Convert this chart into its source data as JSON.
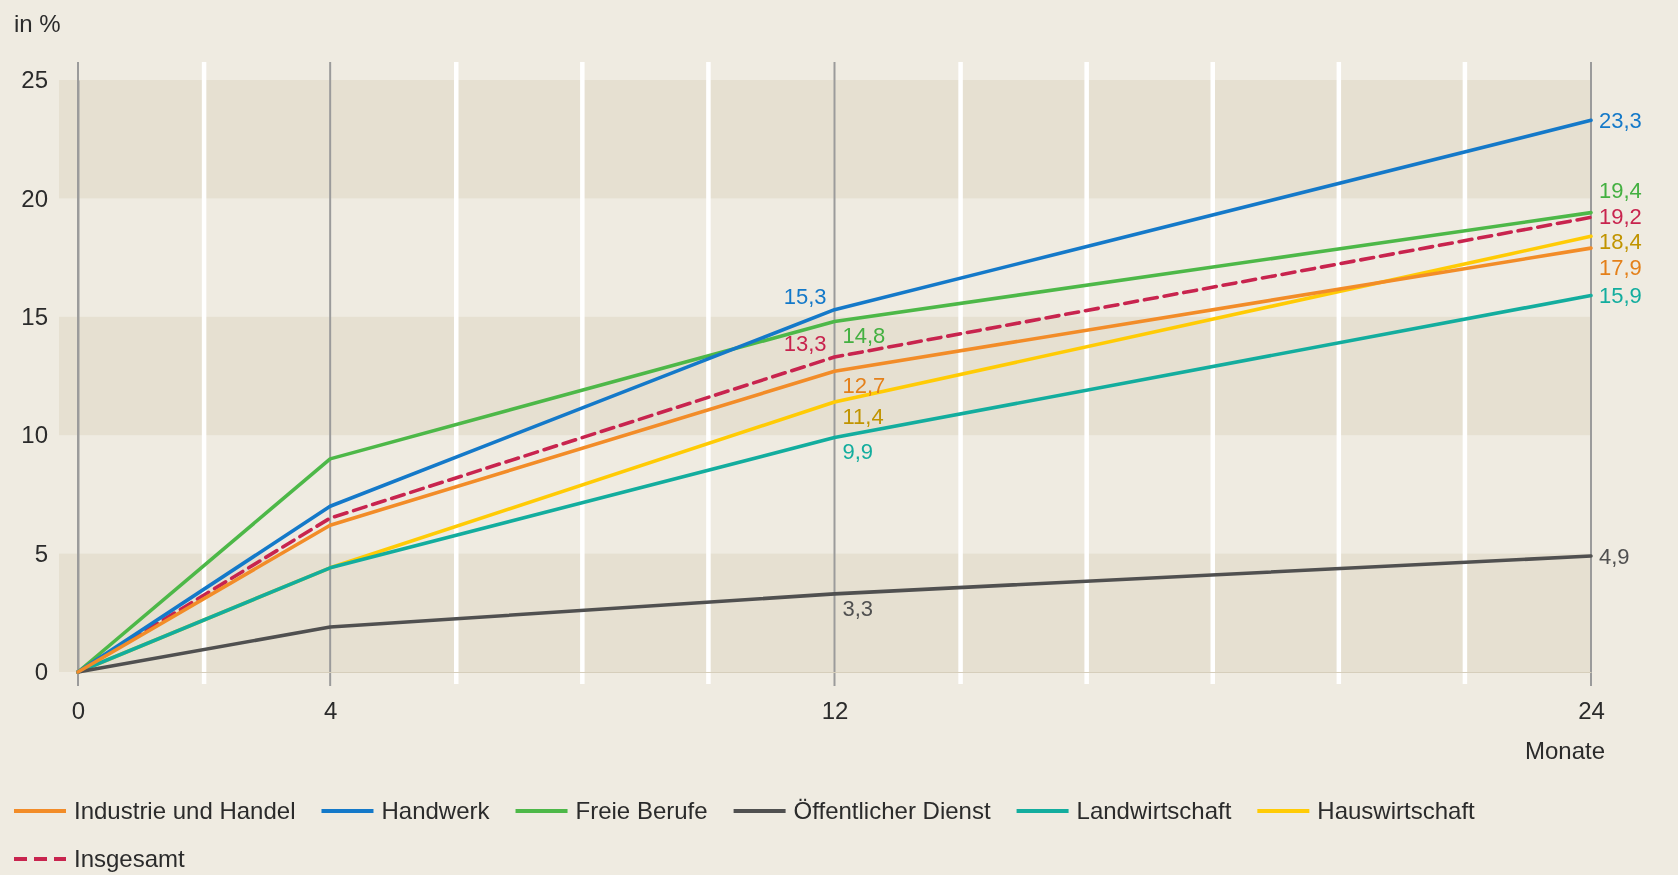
{
  "chart_data": {
    "type": "line",
    "xlabel": "Monate",
    "ylabel": "in %",
    "x": [
      0,
      4,
      12,
      24
    ],
    "xlim": [
      0,
      24
    ],
    "xticks": [
      0,
      {
        "value": 2,
        "label": null
      },
      4,
      {
        "value": 6,
        "label": null
      },
      {
        "value": 8,
        "label": null
      },
      {
        "value": 10,
        "label": null
      },
      12,
      {
        "value": 14,
        "label": null
      },
      {
        "value": 16,
        "label": null
      },
      {
        "value": 18,
        "label": null
      },
      {
        "value": 20,
        "label": null
      },
      {
        "value": 22,
        "label": null
      },
      24
    ],
    "ylim": [
      0,
      25
    ],
    "yticks": [
      0,
      5,
      10,
      15,
      20,
      25
    ],
    "grid": true,
    "legend": "bottom",
    "series": [
      {
        "name": "Industrie und Handel",
        "color": "#f28c28",
        "values": [
          0,
          6.2,
          12.7,
          17.9
        ],
        "value_labels": [
          null,
          null,
          "12,7",
          "17,9"
        ]
      },
      {
        "name": "Handwerk",
        "color": "#1479c9",
        "values": [
          0,
          7.0,
          15.3,
          23.3
        ],
        "value_labels": [
          null,
          null,
          "15,3",
          "23,3"
        ]
      },
      {
        "name": "Freie Berufe",
        "color": "#4db848",
        "values": [
          0,
          9.0,
          14.8,
          19.4
        ],
        "value_labels": [
          null,
          null,
          "14,8",
          "19,4"
        ]
      },
      {
        "name": "Öffentlicher Dienst",
        "color": "#505050",
        "values": [
          0,
          1.9,
          3.3,
          4.9
        ],
        "value_labels": [
          null,
          null,
          "3,3",
          "4,9"
        ]
      },
      {
        "name": "Landwirtschaft",
        "color": "#13ad9e",
        "values": [
          0,
          4.4,
          9.9,
          15.9
        ],
        "value_labels": [
          null,
          null,
          "9,9",
          "15,9"
        ]
      },
      {
        "name": "Hauswirtschaft",
        "color": "#ffcb05",
        "values": [
          0,
          4.4,
          11.4,
          18.4
        ],
        "value_labels": [
          null,
          null,
          "11,4",
          "18,4"
        ]
      },
      {
        "name": "Insgesamt",
        "color": "#c8244e",
        "line_style": "dashed",
        "values": [
          0,
          6.5,
          13.3,
          19.2
        ],
        "value_labels": [
          null,
          null,
          "13,3",
          "19,2"
        ]
      }
    ]
  }
}
